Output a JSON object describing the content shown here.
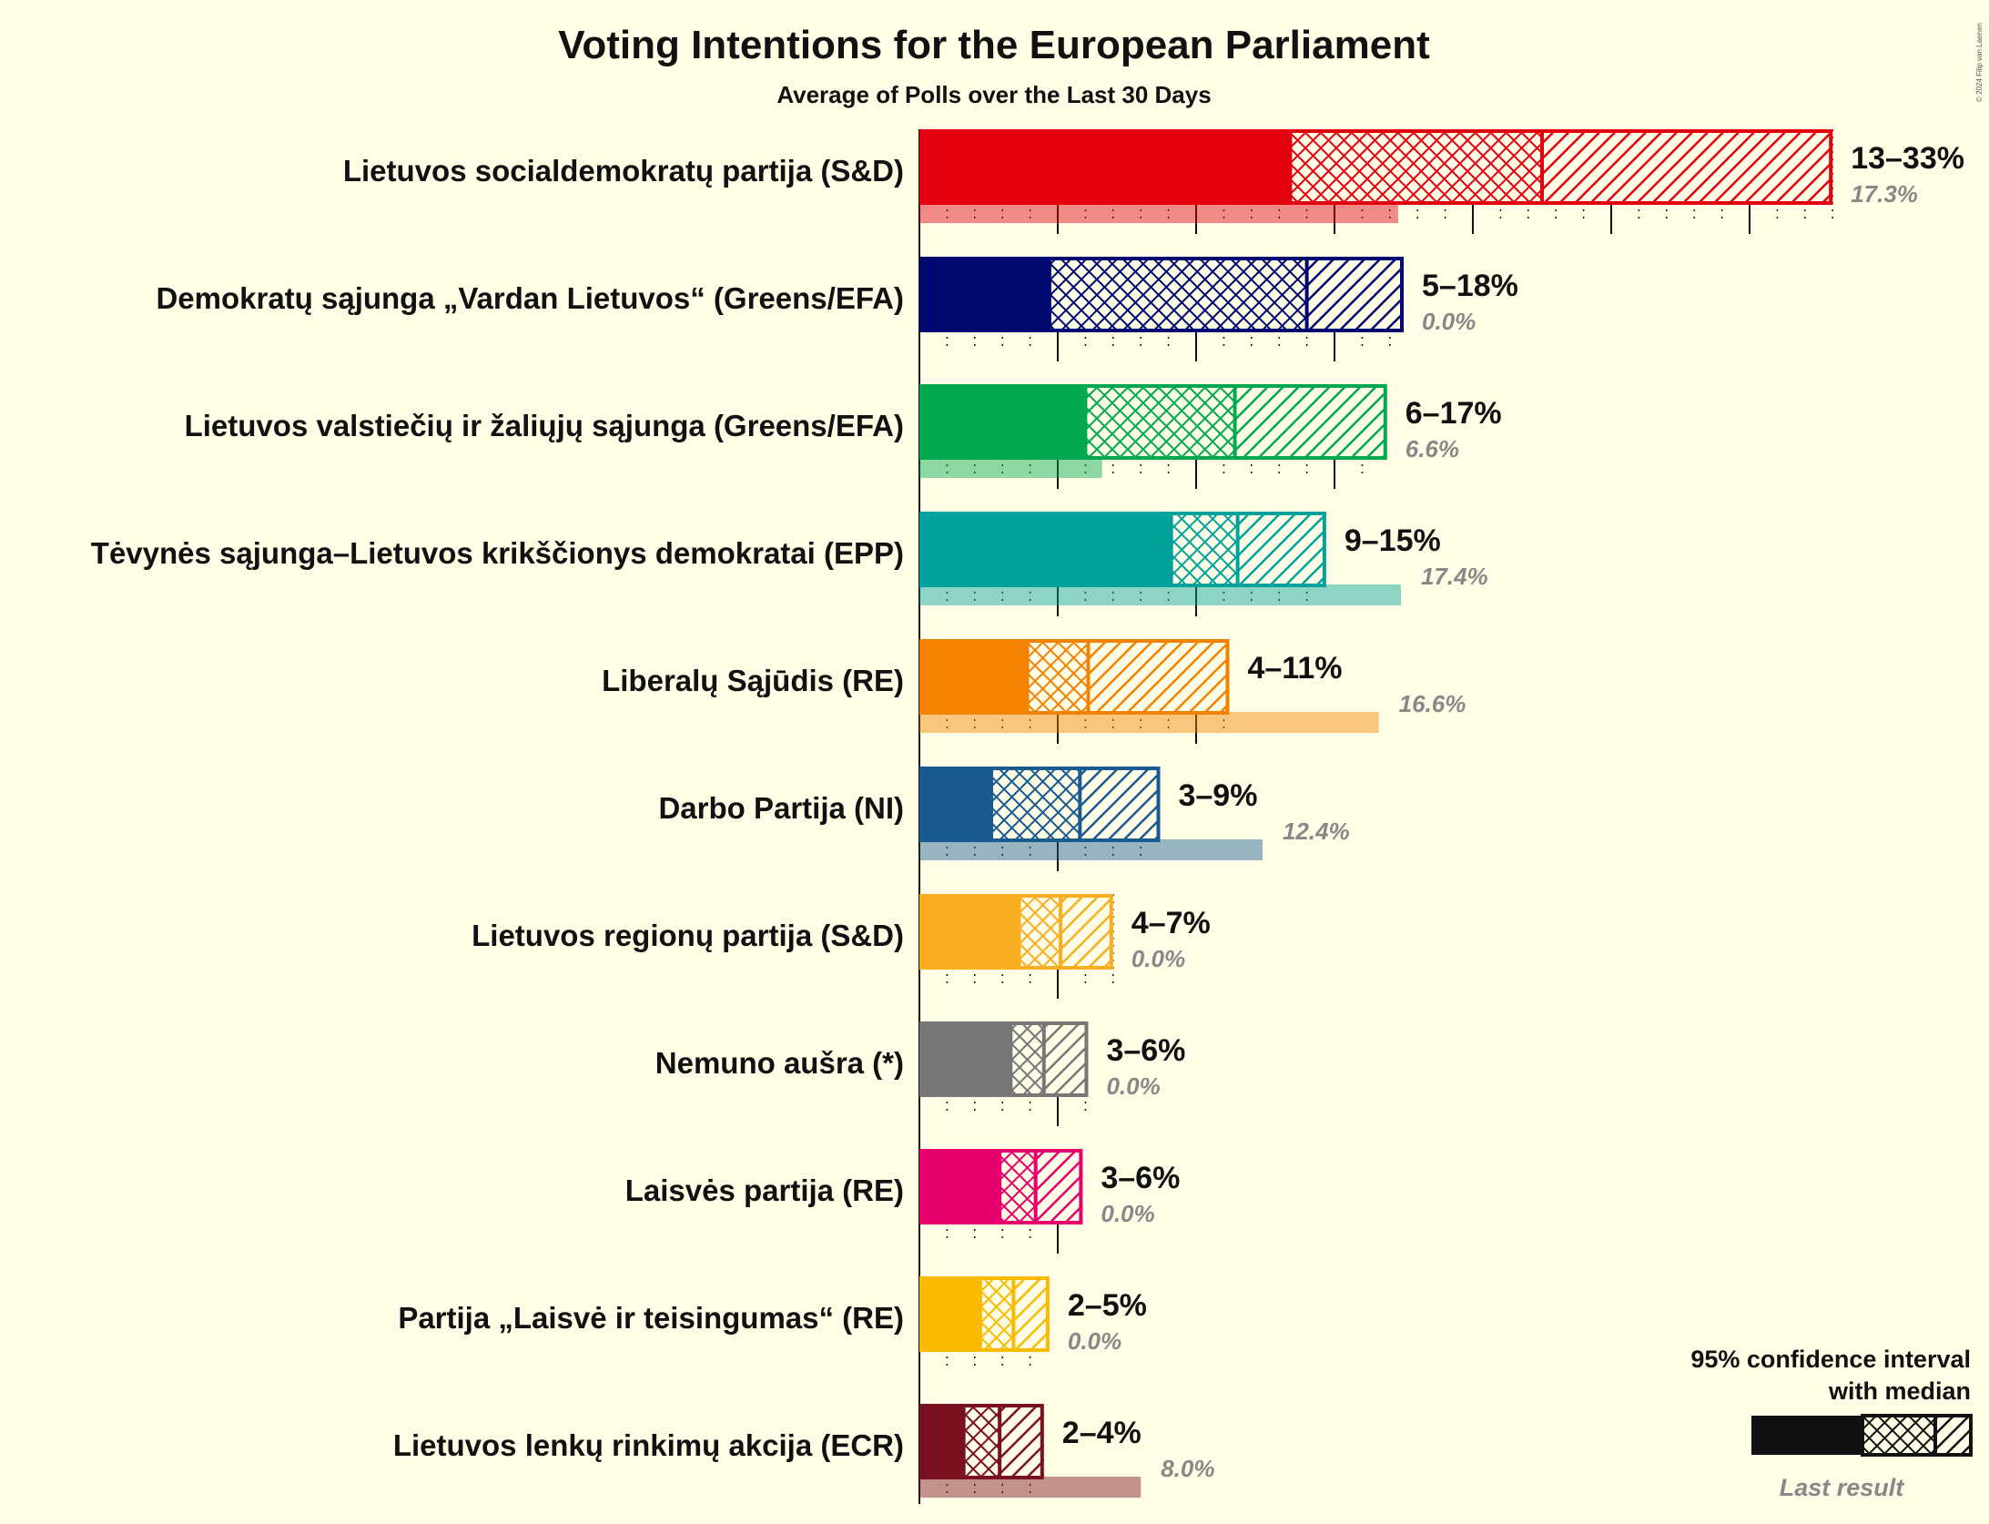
{
  "title": "Voting Intentions for the European Parliament",
  "subtitle": "Average of Polls over the Last 30 Days",
  "copyright": "© 2024 Filip van Laenen",
  "legend": {
    "line1": "95% confidence interval",
    "line2": "with median",
    "last_result": "Last result"
  },
  "chart_data": {
    "type": "bar",
    "orientation": "horizontal",
    "title": "Voting Intentions for the European Parliament",
    "subtitle": "Average of Polls over the Last 30 Days",
    "x_unit": "%",
    "xlim": [
      0,
      33
    ],
    "grid": "dotted vertical lines every 1%, solid every 5%",
    "series_description": "95% confidence interval with median, and last result",
    "parties": [
      {
        "name": "Lietuvos socialdemokratų partija (S&D)",
        "color": "#E3000F",
        "low": 13.4,
        "inner_low": 15.5,
        "median": 22.5,
        "inner_high": 27.5,
        "high": 33.0,
        "range_label": "13–33%",
        "last": 17.3,
        "last_label": "17.3%"
      },
      {
        "name": "Demokratų sąjunga „Vardan Lietuvos“ (Greens/EFA)",
        "color": "#000770",
        "low": 4.7,
        "inner_low": 6.0,
        "median": 14.0,
        "inner_high": 16.0,
        "high": 17.5,
        "range_label": "5–18%",
        "last": 0.0,
        "last_label": "0.0%"
      },
      {
        "name": "Lietuvos valstiečių ir žaliųjų sąjunga (Greens/EFA)",
        "color": "#00A850",
        "low": 6.0,
        "inner_low": 7.0,
        "median": 11.4,
        "inner_high": 14.0,
        "high": 16.9,
        "range_label": "6–17%",
        "last": 6.6,
        "last_label": "6.6%"
      },
      {
        "name": "Tėvynės sąjunga–Lietuvos krikščionys demokratai (EPP)",
        "color": "#00A29B",
        "low": 9.1,
        "inner_low": 9.7,
        "median": 11.5,
        "inner_high": 13.0,
        "high": 14.7,
        "range_label": "9–15%",
        "last": 17.4,
        "last_label": "17.4%"
      },
      {
        "name": "Liberalų Sąjūdis (RE)",
        "color": "#F28200",
        "low": 3.9,
        "inner_low": 4.4,
        "median": 6.1,
        "inner_high": 8.5,
        "high": 11.2,
        "range_label": "4–11%",
        "last": 16.6,
        "last_label": "16.6%"
      },
      {
        "name": "Darbo Partija (NI)",
        "color": "#1A5A92",
        "low": 2.6,
        "inner_low": 3.4,
        "median": 5.8,
        "inner_high": 7.3,
        "high": 8.7,
        "range_label": "3–9%",
        "last": 12.4,
        "last_label": "12.4%"
      },
      {
        "name": "Lietuvos regionų partija (S&D)",
        "color": "#F9AE22",
        "low": 3.6,
        "inner_low": 4.0,
        "median": 5.1,
        "inner_high": 6.1,
        "high": 7.0,
        "range_label": "4–7%",
        "last": 0.0,
        "last_label": "0.0%"
      },
      {
        "name": "Nemuno aušra (*)",
        "color": "#777777",
        "low": 3.3,
        "inner_low": 3.7,
        "median": 4.5,
        "inner_high": 5.3,
        "high": 6.1,
        "range_label": "3–6%",
        "last": 0.0,
        "last_label": "0.0%"
      },
      {
        "name": "Laisvės partija (RE)",
        "color": "#E6006C",
        "low": 2.9,
        "inner_low": 3.3,
        "median": 4.2,
        "inner_high": 5.1,
        "high": 5.9,
        "range_label": "3–6%",
        "last": 0.0,
        "last_label": "0.0%"
      },
      {
        "name": "Partija „Laisvė ir teisingumas“ (RE)",
        "color": "#F9BA00",
        "low": 2.2,
        "inner_low": 2.5,
        "median": 3.4,
        "inner_high": 4.0,
        "high": 4.7,
        "range_label": "2–5%",
        "last": 0.0,
        "last_label": "0.0%"
      },
      {
        "name": "Lietuvos lenkų rinkimų akcija (ECR)",
        "color": "#7A1020",
        "low": 1.6,
        "inner_low": 2.0,
        "median": 2.9,
        "inner_high": 3.8,
        "high": 4.5,
        "range_label": "2–4%",
        "last": 8.0,
        "last_label": "8.0%"
      }
    ]
  }
}
